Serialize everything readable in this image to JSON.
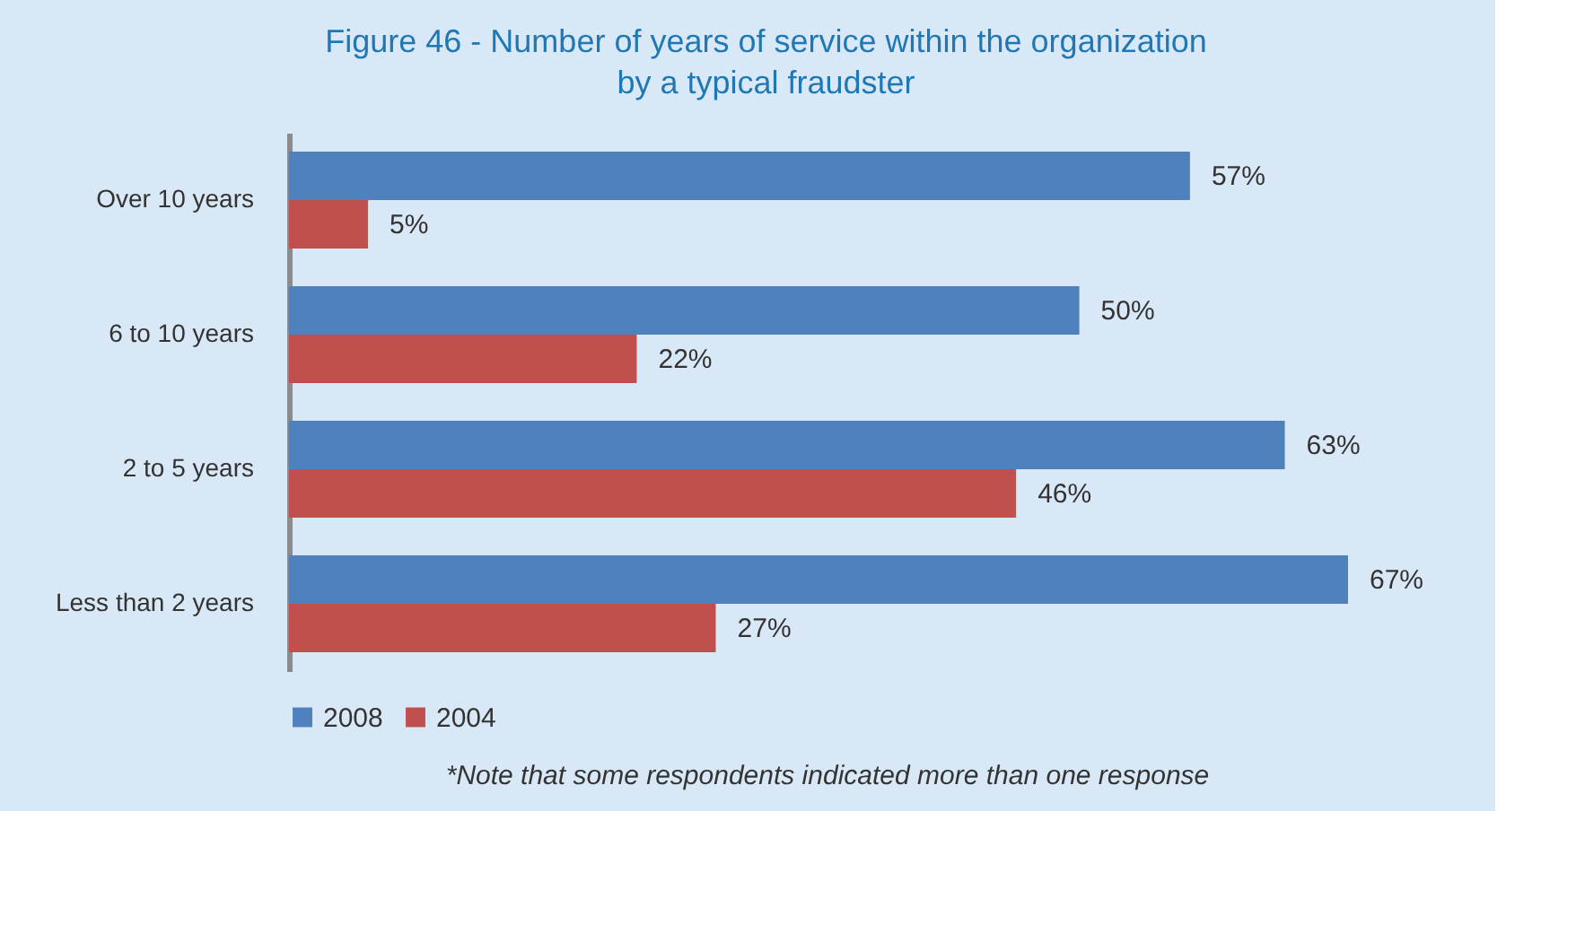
{
  "chart_data": {
    "type": "bar",
    "orientation": "horizontal",
    "title": "Figure 46 - Number of years of service within the organization by a typical fraudster",
    "categories": [
      "Over 10 years",
      "6 to 10 years",
      "2 to 5 years",
      "Less than 2 years"
    ],
    "series": [
      {
        "name": "2008",
        "color": "#4f81bd",
        "values": [
          57,
          50,
          63,
          67
        ],
        "value_labels": [
          "57%",
          "50%",
          "63%",
          "67%"
        ]
      },
      {
        "name": "2004",
        "color": "#c0504d",
        "values": [
          5,
          22,
          46,
          27
        ],
        "value_labels": [
          "5%",
          "22%",
          "46%",
          "27%"
        ]
      }
    ],
    "tick_labels": "y",
    "legend": "bottom",
    "annotations": [
      "*Note that some respondents indicated more than one response"
    ]
  }
}
